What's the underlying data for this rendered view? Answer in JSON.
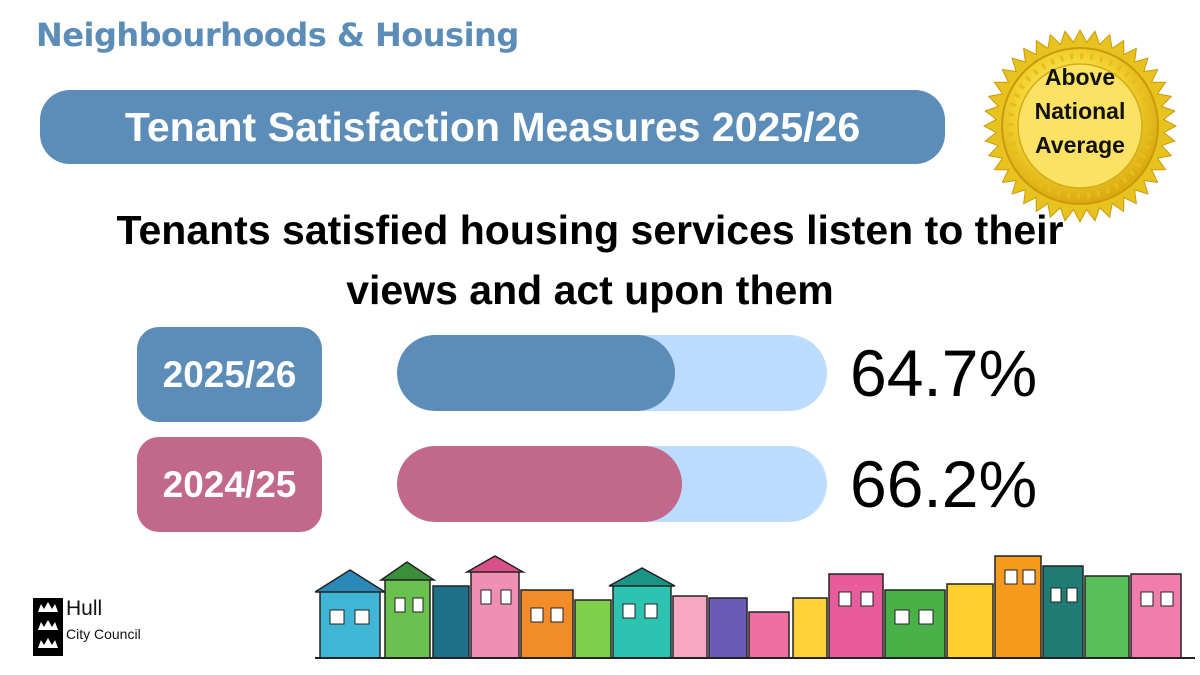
{
  "header": {
    "department": "Neighbourhoods & Housing",
    "banner_title": "Tenant Satisfaction Measures 2025/26"
  },
  "badge": {
    "line1": "Above",
    "line2": "National",
    "line3": "Average"
  },
  "chart_data": {
    "type": "bar",
    "title": "Tenants satisfied housing services listen to their views and act upon them",
    "categories": [
      "2025/26",
      "2024/25"
    ],
    "values": [
      64.7,
      66.2
    ],
    "value_labels": [
      "64.7%",
      "66.2%"
    ],
    "ylim": [
      0,
      100
    ],
    "colors": [
      "#5b8db8",
      "#c2688a"
    ],
    "track_color": "#bcdcff"
  },
  "footer": {
    "logo_name": "Hull",
    "logo_sub": "City Council"
  }
}
